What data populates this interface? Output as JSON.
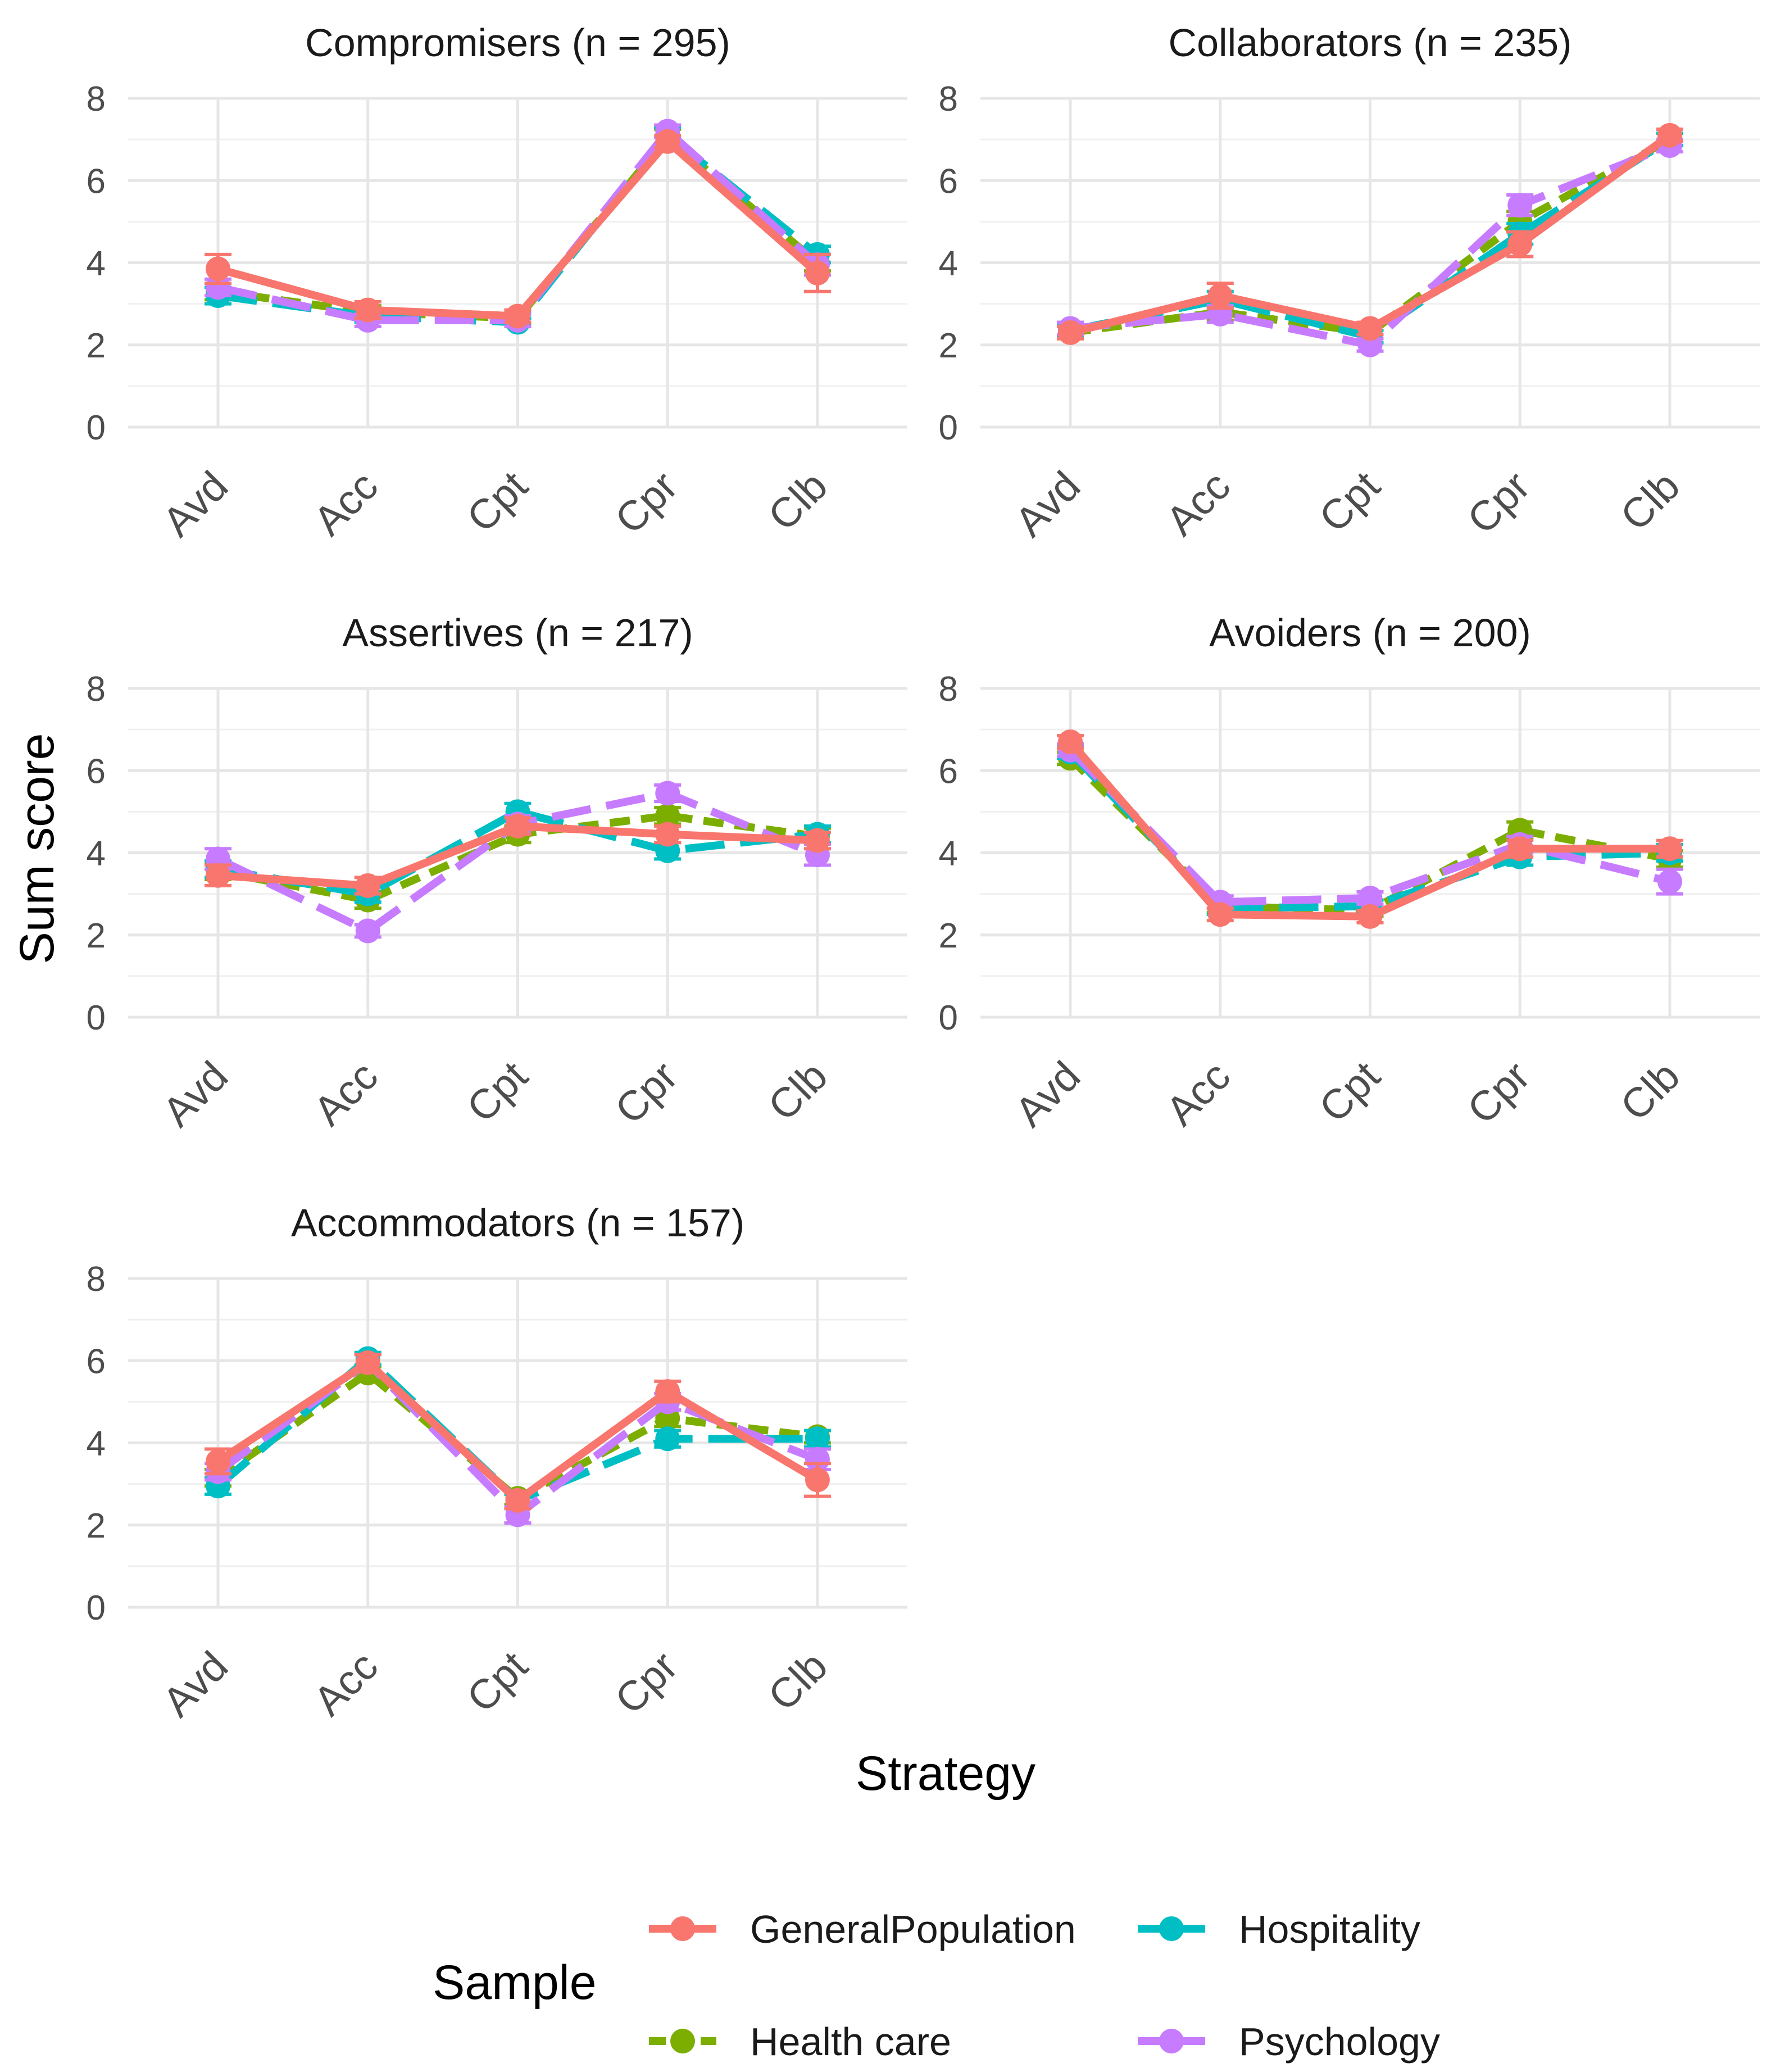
{
  "chart_data": {
    "type": "line",
    "categories": [
      "Avd",
      "Acc",
      "Cpt",
      "Cpr",
      "Clb"
    ],
    "xlabel": "Strategy",
    "ylabel": "Sum score",
    "ylim": [
      0,
      8
    ],
    "yticks": [
      0,
      2,
      4,
      6,
      8
    ],
    "y_tick_labels": [
      "0",
      "2",
      "4",
      "6",
      "8"
    ],
    "grid": true,
    "legend": {
      "title": "Sample",
      "placement": "bottom",
      "entries": [
        {
          "name": "GeneralPopulation",
          "color": "#F8766D",
          "dash": "solid"
        },
        {
          "name": "Hospitality",
          "color": "#00BFC4",
          "dash": "longdash"
        },
        {
          "name": "Health care",
          "color": "#7CAE00",
          "dash": "dashed"
        },
        {
          "name": "Psychology",
          "color": "#C77CFF",
          "dash": "longdash"
        }
      ]
    },
    "panels": [
      {
        "title": "Compromisers (n = 295)",
        "series": [
          {
            "name": "GeneralPopulation",
            "values": [
              3.85,
              2.85,
              2.7,
              6.95,
              3.75
            ],
            "err": [
              0.35,
              0.2,
              0.15,
              0.15,
              0.45
            ]
          },
          {
            "name": "Health care",
            "values": [
              3.3,
              2.8,
              2.65,
              7.05,
              4.0
            ],
            "err": [
              0.2,
              0.15,
              0.15,
              0.2,
              0.2
            ]
          },
          {
            "name": "Hospitality",
            "values": [
              3.2,
              2.7,
              2.55,
              7.1,
              4.2
            ],
            "err": [
              0.2,
              0.15,
              0.1,
              0.2,
              0.2
            ]
          },
          {
            "name": "Psychology",
            "values": [
              3.4,
              2.6,
              2.6,
              7.2,
              3.95
            ],
            "err": [
              0.2,
              0.15,
              0.15,
              0.15,
              0.25
            ]
          }
        ]
      },
      {
        "title": "Collaborators (n = 235)",
        "series": [
          {
            "name": "GeneralPopulation",
            "values": [
              2.3,
              3.2,
              2.4,
              4.45,
              7.1
            ],
            "err": [
              0.15,
              0.3,
              0.15,
              0.3,
              0.15
            ]
          },
          {
            "name": "Health care",
            "values": [
              2.3,
              2.8,
              2.3,
              5.0,
              7.0
            ],
            "err": [
              0.15,
              0.2,
              0.15,
              0.25,
              0.15
            ]
          },
          {
            "name": "Hospitality",
            "values": [
              2.35,
              3.1,
              2.2,
              4.7,
              7.0
            ],
            "err": [
              0.15,
              0.2,
              0.15,
              0.25,
              0.15
            ]
          },
          {
            "name": "Psychology",
            "values": [
              2.4,
              2.75,
              2.0,
              5.4,
              6.85
            ],
            "err": [
              0.15,
              0.2,
              0.15,
              0.25,
              0.15
            ]
          }
        ]
      },
      {
        "title": "Assertives (n = 217)",
        "series": [
          {
            "name": "GeneralPopulation",
            "values": [
              3.45,
              3.2,
              4.65,
              4.45,
              4.3
            ],
            "err": [
              0.25,
              0.2,
              0.2,
              0.2,
              0.2
            ]
          },
          {
            "name": "Health care",
            "values": [
              3.55,
              2.85,
              4.45,
              4.9,
              4.4
            ],
            "err": [
              0.2,
              0.2,
              0.2,
              0.2,
              0.2
            ]
          },
          {
            "name": "Hospitality",
            "values": [
              3.6,
              3.0,
              5.0,
              4.05,
              4.45
            ],
            "err": [
              0.2,
              0.2,
              0.2,
              0.2,
              0.2
            ]
          },
          {
            "name": "Psychology",
            "values": [
              3.85,
              2.1,
              4.7,
              5.45,
              3.95
            ],
            "err": [
              0.25,
              0.15,
              0.2,
              0.2,
              0.25
            ]
          }
        ]
      },
      {
        "title": "Avoiders (n = 200)",
        "series": [
          {
            "name": "GeneralPopulation",
            "values": [
              6.7,
              2.5,
              2.45,
              4.1,
              4.1
            ],
            "err": [
              0.15,
              0.15,
              0.15,
              0.2,
              0.2
            ]
          },
          {
            "name": "Health care",
            "values": [
              6.3,
              2.7,
              2.6,
              4.55,
              3.85
            ],
            "err": [
              0.15,
              0.15,
              0.15,
              0.2,
              0.2
            ]
          },
          {
            "name": "Hospitality",
            "values": [
              6.45,
              2.65,
              2.7,
              3.9,
              4.0
            ],
            "err": [
              0.15,
              0.15,
              0.15,
              0.2,
              0.2
            ]
          },
          {
            "name": "Psychology",
            "values": [
              6.5,
              2.8,
              2.9,
              4.2,
              3.3
            ],
            "err": [
              0.15,
              0.15,
              0.15,
              0.2,
              0.3
            ]
          }
        ]
      },
      {
        "title": "Accommodators (n = 157)",
        "series": [
          {
            "name": "GeneralPopulation",
            "values": [
              3.55,
              5.95,
              2.6,
              5.25,
              3.1
            ],
            "err": [
              0.3,
              0.2,
              0.2,
              0.25,
              0.4
            ]
          },
          {
            "name": "Health care",
            "values": [
              3.15,
              5.7,
              2.65,
              4.6,
              4.15
            ],
            "err": [
              0.2,
              0.15,
              0.15,
              0.2,
              0.15
            ]
          },
          {
            "name": "Hospitality",
            "values": [
              2.95,
              6.05,
              2.6,
              4.1,
              4.1
            ],
            "err": [
              0.2,
              0.15,
              0.15,
              0.2,
              0.2
            ]
          },
          {
            "name": "Psychology",
            "values": [
              3.3,
              5.95,
              2.25,
              5.0,
              3.6
            ],
            "err": [
              0.2,
              0.2,
              0.2,
              0.2,
              0.25
            ]
          }
        ]
      }
    ]
  }
}
